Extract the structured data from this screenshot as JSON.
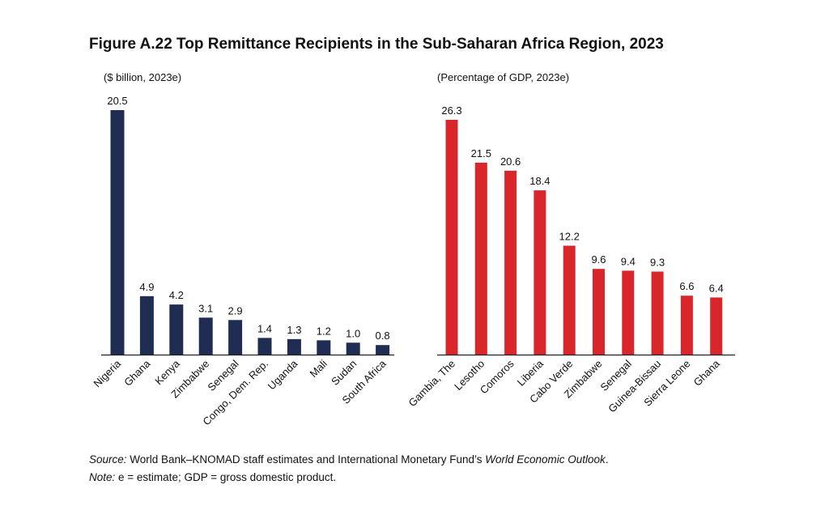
{
  "title": "Figure A.22 Top Remittance Recipients in the Sub-Saharan Africa Region, 2023",
  "colors": {
    "left_bar": "#1f2d52",
    "right_bar": "#d9262b",
    "axis": "#222222"
  },
  "chart_data": [
    {
      "type": "bar",
      "unit_label": "($ billion, 2023e)",
      "categories": [
        "Nigeria",
        "Ghana",
        "Kenya",
        "Zimbabwe",
        "Senegal",
        "Congo, Dem. Rep.",
        "Uganda",
        "Mali",
        "Sudan",
        "South Africa"
      ],
      "values": [
        20.5,
        4.9,
        4.2,
        3.1,
        2.9,
        1.4,
        1.3,
        1.2,
        1.0,
        0.8
      ],
      "labels": [
        "20.5",
        "4.9",
        "4.2",
        "3.1",
        "2.9",
        "1.4",
        "1.3",
        "1.2",
        "1.0",
        "0.8"
      ],
      "ylim": [
        0,
        20.5
      ]
    },
    {
      "type": "bar",
      "unit_label": "(Percentage of GDP, 2023e)",
      "categories": [
        "Gambia, The",
        "Lesotho",
        "Comoros",
        "Liberia",
        "Cabo Verde",
        "Zimbabwe",
        "Senegal",
        "Guinea-Bissau",
        "Sierra Leone",
        "Ghana"
      ],
      "values": [
        26.3,
        21.5,
        20.6,
        18.4,
        12.2,
        9.6,
        9.4,
        9.3,
        6.6,
        6.4
      ],
      "labels": [
        "26.3",
        "21.5",
        "20.6",
        "18.4",
        "12.2",
        "9.6",
        "9.4",
        "9.3",
        "6.6",
        "6.4"
      ],
      "ylim": [
        0,
        26.3
      ]
    }
  ],
  "footnotes": {
    "source_label": "Source:",
    "source_text": " World Bank–KNOMAD staff estimates and International Monetary Fund’s ",
    "source_italic": "World Economic Outlook",
    "source_end": ".",
    "note_label": "Note:",
    "note_text": " e = estimate; GDP = gross domestic product."
  }
}
